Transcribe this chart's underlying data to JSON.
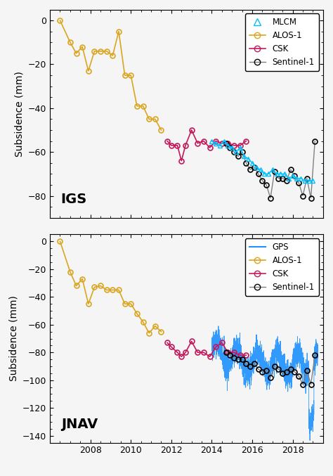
{
  "top_panel": {
    "label": "IGS",
    "ylim": [
      -90,
      5
    ],
    "yticks": [
      0,
      -20,
      -40,
      -60,
      -80
    ],
    "alos1_x": [
      2006.5,
      2007.0,
      2007.3,
      2007.6,
      2007.9,
      2008.2,
      2008.5,
      2008.8,
      2009.1,
      2009.4,
      2009.7,
      2010.0,
      2010.3,
      2010.6,
      2010.9,
      2011.2,
      2011.5
    ],
    "alos1_y": [
      0,
      -10,
      -15,
      -12,
      -23,
      -14,
      -14,
      -14,
      -16,
      -5,
      -25,
      -25,
      -39,
      -39,
      -45,
      -45,
      -50
    ],
    "csk_x": [
      2011.8,
      2012.0,
      2012.3,
      2012.5,
      2012.7,
      2013.0,
      2013.3,
      2013.6,
      2013.9,
      2014.2,
      2014.5,
      2014.8,
      2015.1,
      2015.4,
      2015.7
    ],
    "csk_y": [
      -55,
      -57,
      -57,
      -64,
      -57,
      -50,
      -56,
      -55,
      -58,
      -55,
      -56,
      -56,
      -57,
      -57,
      -55
    ],
    "sentinel_x": [
      2014.7,
      2014.9,
      2015.1,
      2015.3,
      2015.5,
      2015.7,
      2015.9,
      2016.1,
      2016.3,
      2016.5,
      2016.7,
      2016.9,
      2017.1,
      2017.3,
      2017.5,
      2017.7,
      2017.9,
      2018.1,
      2018.3,
      2018.5,
      2018.7,
      2018.9,
      2019.1
    ],
    "sentinel_y": [
      -56,
      -58,
      -60,
      -62,
      -60,
      -65,
      -68,
      -67,
      -70,
      -73,
      -75,
      -81,
      -69,
      -72,
      -72,
      -73,
      -68,
      -71,
      -74,
      -80,
      -72,
      -81,
      -55
    ],
    "mlcm_x": [
      2014.0,
      2014.2,
      2014.4,
      2014.6,
      2014.8,
      2015.0,
      2015.2,
      2015.4,
      2015.6,
      2015.8,
      2016.0,
      2016.2,
      2016.4,
      2016.6,
      2016.8,
      2017.0,
      2017.2,
      2017.4,
      2017.6,
      2017.8,
      2018.0,
      2018.2,
      2018.4,
      2018.6,
      2018.8,
      2019.0
    ],
    "mlcm_y": [
      -55,
      -56,
      -57,
      -55,
      -57,
      -58,
      -60,
      -58,
      -62,
      -63,
      -65,
      -67,
      -68,
      -70,
      -70,
      -68,
      -70,
      -70,
      -70,
      -72,
      -71,
      -72,
      -72,
      -73,
      -73,
      -73
    ]
  },
  "bottom_panel": {
    "label": "JNAV",
    "ylim": [
      -145,
      5
    ],
    "yticks": [
      0,
      -20,
      -40,
      -60,
      -80,
      -100,
      -120,
      -140
    ],
    "alos1_x": [
      2006.5,
      2007.0,
      2007.3,
      2007.6,
      2007.9,
      2008.2,
      2008.5,
      2008.8,
      2009.1,
      2009.4,
      2009.7,
      2010.0,
      2010.3,
      2010.6,
      2010.9,
      2011.2,
      2011.5
    ],
    "alos1_y": [
      0,
      -22,
      -32,
      -27,
      -45,
      -33,
      -32,
      -35,
      -35,
      -35,
      -45,
      -45,
      -52,
      -58,
      -66,
      -61,
      -65
    ],
    "csk_x": [
      2011.8,
      2012.0,
      2012.3,
      2012.5,
      2012.7,
      2013.0,
      2013.3,
      2013.6,
      2013.9,
      2014.2,
      2014.5,
      2014.8,
      2015.1,
      2015.4,
      2015.7
    ],
    "csk_y": [
      -73,
      -76,
      -80,
      -83,
      -80,
      -72,
      -80,
      -80,
      -83,
      -76,
      -73,
      -80,
      -80,
      -82,
      -82
    ],
    "sentinel_x": [
      2014.7,
      2014.9,
      2015.1,
      2015.3,
      2015.5,
      2015.7,
      2015.9,
      2016.1,
      2016.3,
      2016.5,
      2016.7,
      2016.9,
      2017.1,
      2017.3,
      2017.5,
      2017.7,
      2017.9,
      2018.1,
      2018.3,
      2018.5,
      2018.7,
      2018.9,
      2019.1
    ],
    "sentinel_y": [
      -80,
      -82,
      -84,
      -85,
      -85,
      -88,
      -90,
      -88,
      -92,
      -94,
      -93,
      -98,
      -90,
      -92,
      -95,
      -94,
      -92,
      -94,
      -97,
      -103,
      -93,
      -103,
      -82
    ],
    "gps_x_start": 2014.0,
    "gps_x_end": 2019.25,
    "gps_x_spike_start": 2018.8,
    "gps_x_spike_end": 2019.05
  },
  "xlim": [
    2006.0,
    2019.5
  ],
  "xticks": [
    2008,
    2010,
    2012,
    2014,
    2016,
    2018
  ],
  "colors": {
    "alos1": "#DAA520",
    "csk": "#C2185B",
    "sentinel": "#808080",
    "mlcm": "#00BFFF",
    "gps": "#1E90FF"
  },
  "background": "#f5f5f5"
}
